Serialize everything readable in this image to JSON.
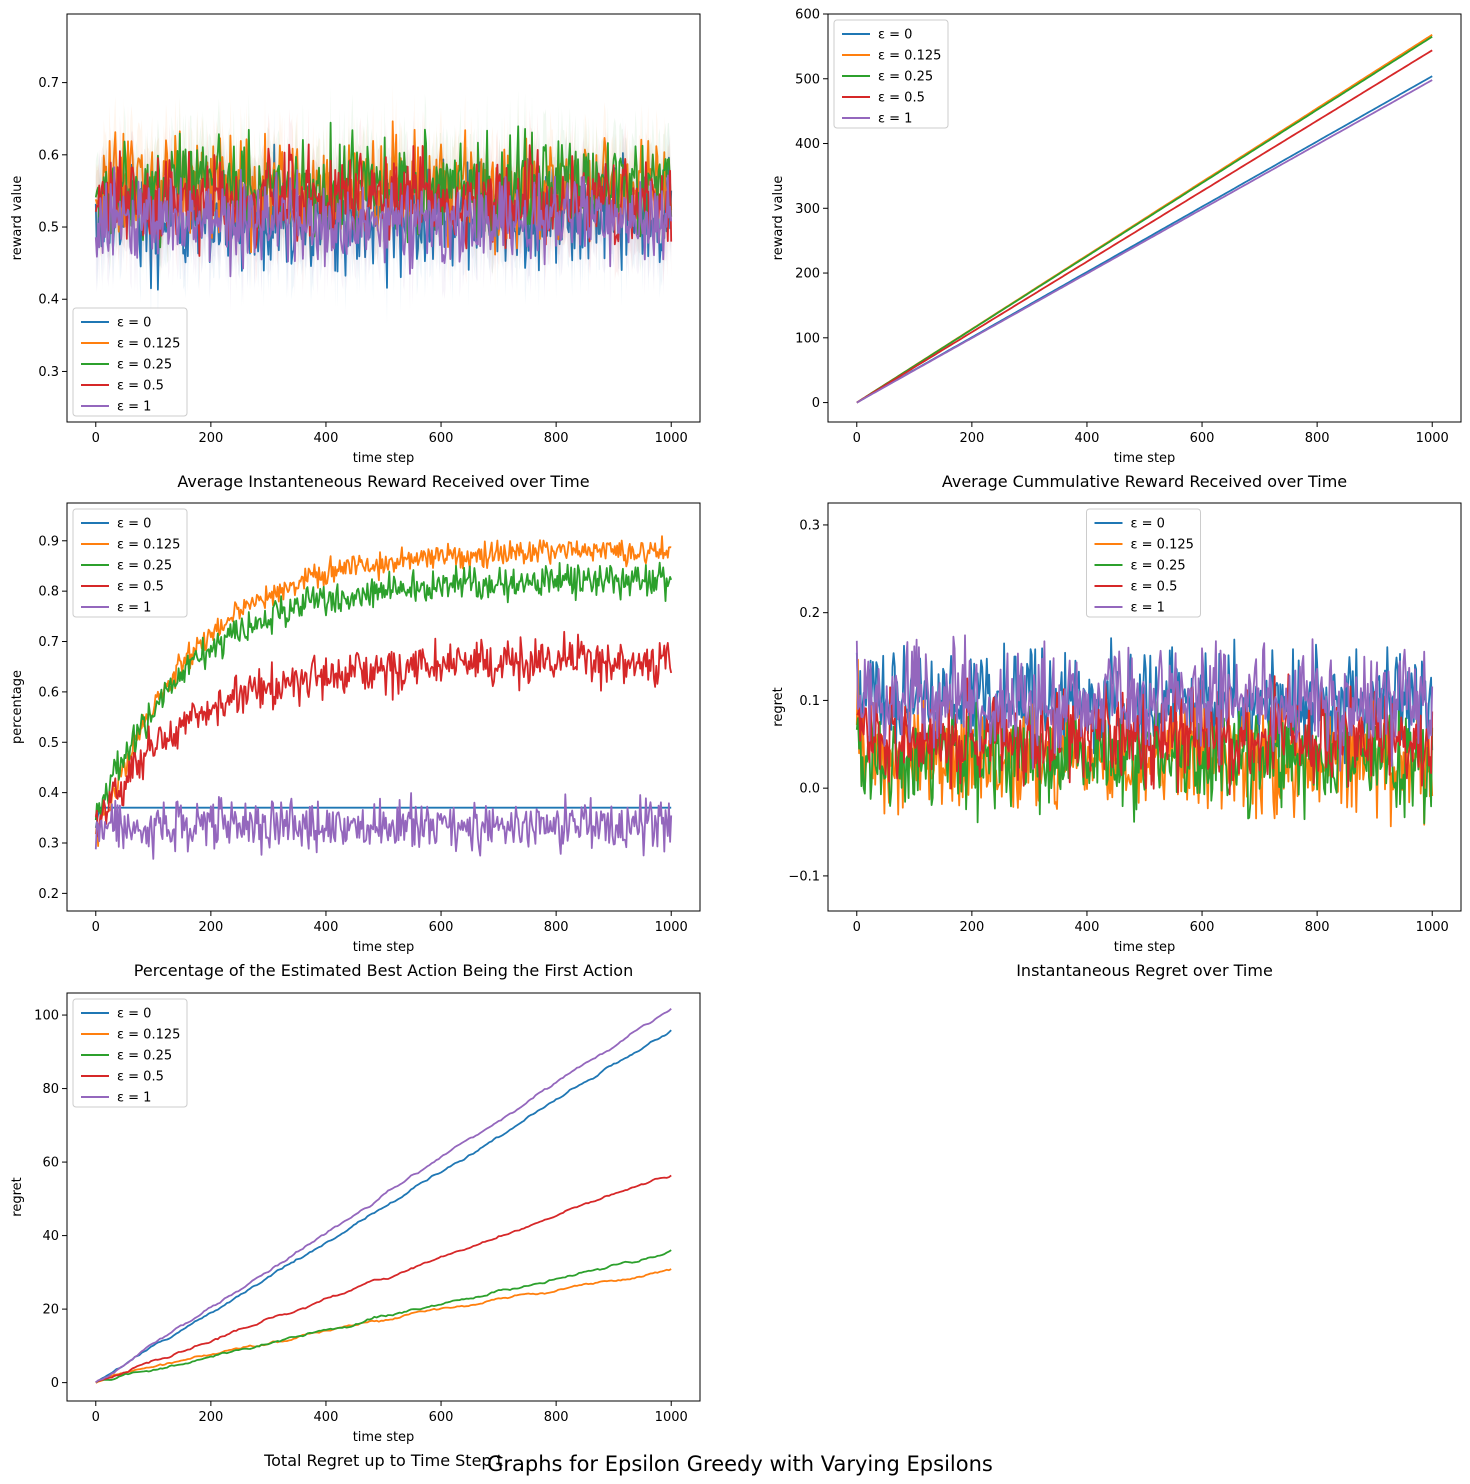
{
  "figure_title": "Graphs for Epsilon Greedy with Varying Epsilons",
  "legend_entries": [
    "ε = 0",
    "ε = 0.125",
    "ε = 0.25",
    "ε = 0.5",
    "ε = 1"
  ],
  "series_colors": [
    "#1f77b4",
    "#ff7f0e",
    "#2ca02c",
    "#d62728",
    "#9467bd"
  ],
  "chart_data": [
    {
      "id": "inst-reward",
      "type": "line",
      "title": "Average Instanteneous Reward Received over Time",
      "xlabel": "time step",
      "ylabel": "reward value",
      "xlim": [
        -50,
        1050
      ],
      "ylim": [
        0.23,
        0.795
      ],
      "xticks": [
        0,
        200,
        400,
        600,
        800,
        1000
      ],
      "yticks": [
        0.3,
        0.4,
        0.5,
        0.6,
        0.7
      ],
      "legend": "lower-left",
      "band": true,
      "series": [
        {
          "name": "ε = 0",
          "start": 0.52,
          "level": 0.51,
          "noise": 0.055,
          "pattern": "noise"
        },
        {
          "name": "ε = 0.125",
          "start": 0.5,
          "level": 0.555,
          "noise": 0.055,
          "pattern": "noise"
        },
        {
          "name": "ε = 0.25",
          "start": 0.55,
          "level": 0.555,
          "noise": 0.05,
          "pattern": "noise"
        },
        {
          "name": "ε = 0.5",
          "start": 0.5,
          "level": 0.54,
          "noise": 0.045,
          "pattern": "noise"
        },
        {
          "name": "ε = 1",
          "start": 0.5,
          "level": 0.505,
          "noise": 0.045,
          "pattern": "noise"
        }
      ]
    },
    {
      "id": "cum-reward",
      "type": "line",
      "title": "Average Cummulative Reward Received over Time",
      "xlabel": "time step",
      "ylabel": "reward value",
      "xlim": [
        -50,
        1050
      ],
      "ylim": [
        -30,
        600
      ],
      "xticks": [
        0,
        200,
        400,
        600,
        800,
        1000
      ],
      "yticks": [
        0,
        100,
        200,
        300,
        400,
        500,
        600
      ],
      "legend": "upper-left",
      "series": [
        {
          "name": "ε = 0",
          "start": 0,
          "level": 504,
          "noise": 0,
          "pattern": "linear"
        },
        {
          "name": "ε = 0.125",
          "start": 0,
          "level": 568,
          "noise": 0,
          "pattern": "linear"
        },
        {
          "name": "ε = 0.25",
          "start": 0,
          "level": 565,
          "noise": 0,
          "pattern": "linear"
        },
        {
          "name": "ε = 0.5",
          "start": 0,
          "level": 544,
          "noise": 0,
          "pattern": "linear"
        },
        {
          "name": "ε = 1",
          "start": 0,
          "level": 498,
          "noise": 0,
          "pattern": "linear"
        }
      ]
    },
    {
      "id": "best-action",
      "type": "line",
      "title": "Percentage of the Estimated Best Action Being the First Action",
      "xlabel": "time step",
      "ylabel": "percentage",
      "xlim": [
        -50,
        1050
      ],
      "ylim": [
        0.165,
        0.975
      ],
      "xticks": [
        0,
        200,
        400,
        600,
        800,
        1000
      ],
      "yticks": [
        0.2,
        0.3,
        0.4,
        0.5,
        0.6,
        0.7,
        0.8,
        0.9
      ],
      "legend": "upper-left",
      "series": [
        {
          "name": "ε = 0",
          "start": 0.33,
          "level": 0.37,
          "noise": 0,
          "pattern": "flat"
        },
        {
          "name": "ε = 0.125",
          "start": 0.3,
          "level": 0.88,
          "noise": 0.02,
          "pattern": "rise"
        },
        {
          "name": "ε = 0.25",
          "start": 0.35,
          "level": 0.82,
          "noise": 0.025,
          "pattern": "rise"
        },
        {
          "name": "ε = 0.5",
          "start": 0.33,
          "level": 0.66,
          "noise": 0.035,
          "pattern": "rise"
        },
        {
          "name": "ε = 1",
          "start": 0.33,
          "level": 0.335,
          "noise": 0.04,
          "pattern": "noise"
        }
      ]
    },
    {
      "id": "inst-regret",
      "type": "line",
      "title": "Instantaneous Regret over Time",
      "xlabel": "time step",
      "ylabel": "regret",
      "xlim": [
        -50,
        1050
      ],
      "ylim": [
        -0.14,
        0.325
      ],
      "xticks": [
        0,
        200,
        400,
        600,
        800,
        1000
      ],
      "yticks": [
        -0.1,
        0.0,
        0.1,
        0.2,
        0.3
      ],
      "legend": "upper-center",
      "series": [
        {
          "name": "ε = 0",
          "start": 0.1,
          "level": 0.096,
          "noise": 0.045,
          "pattern": "noise"
        },
        {
          "name": "ε = 0.125",
          "start": 0.1,
          "level": 0.03,
          "noise": 0.045,
          "pattern": "noise"
        },
        {
          "name": "ε = 0.25",
          "start": 0.08,
          "level": 0.035,
          "noise": 0.045,
          "pattern": "noise"
        },
        {
          "name": "ε = 0.5",
          "start": 0.08,
          "level": 0.057,
          "noise": 0.04,
          "pattern": "noise"
        },
        {
          "name": "ε = 1",
          "start": 0.1,
          "level": 0.1,
          "noise": 0.045,
          "pattern": "noise"
        }
      ]
    },
    {
      "id": "total-regret",
      "type": "line",
      "title": "Total Regret up to Time Step t",
      "xlabel": "time step",
      "ylabel": "regret",
      "xlim": [
        -50,
        1050
      ],
      "ylim": [
        -5,
        106
      ],
      "xticks": [
        0,
        200,
        400,
        600,
        800,
        1000
      ],
      "yticks": [
        0,
        20,
        40,
        60,
        80,
        100
      ],
      "legend": "upper-left",
      "series": [
        {
          "name": "ε = 0",
          "start": 0,
          "level": 96,
          "noise": 0.25,
          "pattern": "linear"
        },
        {
          "name": "ε = 0.125",
          "start": 0,
          "level": 30.5,
          "noise": 0.25,
          "pattern": "concave"
        },
        {
          "name": "ε = 0.25",
          "start": 0,
          "level": 35.3,
          "noise": 0.25,
          "pattern": "linear"
        },
        {
          "name": "ε = 0.5",
          "start": 0,
          "level": 56.8,
          "noise": 0.25,
          "pattern": "linear"
        },
        {
          "name": "ε = 1",
          "start": 0,
          "level": 101.8,
          "noise": 0.25,
          "pattern": "linear"
        }
      ]
    }
  ]
}
